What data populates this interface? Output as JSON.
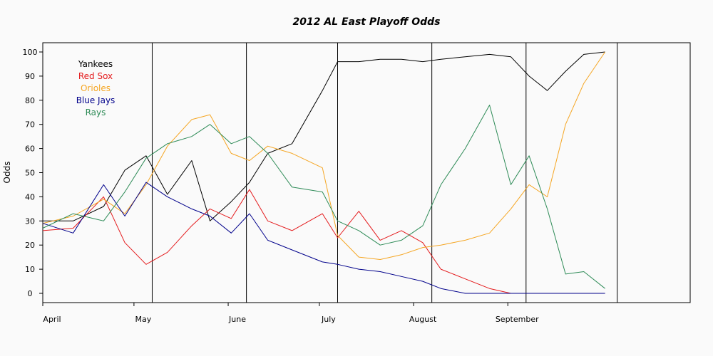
{
  "chart_data": {
    "type": "line",
    "title": "2012 AL East Playoff Odds",
    "xlabel": "",
    "ylabel": "Odds",
    "ylim": [
      0,
      100
    ],
    "yticks": [
      0,
      10,
      20,
      30,
      40,
      50,
      60,
      70,
      80,
      90,
      100
    ],
    "xlim": [
      "2012-04-01",
      "2012-10-31"
    ],
    "month_ticks": [
      {
        "label": "April",
        "date": "2012-04-01"
      },
      {
        "label": "May",
        "date": "2012-05-01"
      },
      {
        "label": "June",
        "date": "2012-06-01"
      },
      {
        "label": "July",
        "date": "2012-07-01"
      },
      {
        "label": "August",
        "date": "2012-08-01"
      },
      {
        "label": "September",
        "date": "2012-09-01"
      }
    ],
    "vertical_lines": [
      "2012-04-01",
      "2012-05-07",
      "2012-06-07",
      "2012-07-07",
      "2012-08-07",
      "2012-09-07",
      "2012-10-07"
    ],
    "legend_position": "top-left",
    "x": [
      "2012-04-01",
      "2012-04-11",
      "2012-04-21",
      "2012-04-28",
      "2012-05-05",
      "2012-05-12",
      "2012-05-20",
      "2012-05-26",
      "2012-06-02",
      "2012-06-08",
      "2012-06-14",
      "2012-06-22",
      "2012-07-02",
      "2012-07-07",
      "2012-07-14",
      "2012-07-21",
      "2012-07-28",
      "2012-08-04",
      "2012-08-10",
      "2012-08-18",
      "2012-08-26",
      "2012-09-02",
      "2012-09-08",
      "2012-09-14",
      "2012-09-20",
      "2012-09-26",
      "2012-10-03"
    ],
    "series": [
      {
        "name": "Yankees",
        "color": "#000000",
        "values": [
          30,
          30,
          36,
          51,
          57,
          41,
          55,
          30,
          38,
          46,
          58,
          62,
          84,
          96,
          96,
          97,
          97,
          96,
          97,
          98,
          99,
          98,
          90,
          84,
          92,
          99,
          100
        ]
      },
      {
        "name": "Red Sox",
        "color": "#e41a1c",
        "values": [
          26,
          27,
          40,
          21,
          12,
          17,
          28,
          35,
          31,
          43,
          30,
          26,
          33,
          23,
          34,
          22,
          26,
          21,
          10,
          6,
          2,
          0,
          0,
          0,
          0,
          0,
          0
        ]
      },
      {
        "name": "Orioles",
        "color": "#f5a623",
        "values": [
          29,
          32,
          39,
          33,
          45,
          61,
          72,
          74,
          58,
          55,
          61,
          58,
          52,
          24,
          15,
          14,
          16,
          19,
          20,
          22,
          25,
          35,
          45,
          40,
          70,
          87,
          100
        ]
      },
      {
        "name": "Blue Jays",
        "color": "#00008b",
        "values": [
          29,
          25,
          45,
          32,
          46,
          40,
          35,
          32,
          25,
          33,
          22,
          18,
          13,
          12,
          10,
          9,
          7,
          5,
          2,
          0,
          0,
          0,
          0,
          0,
          0,
          0,
          0
        ]
      },
      {
        "name": "Rays",
        "color": "#2e8b57",
        "values": [
          27,
          33,
          30,
          42,
          56,
          62,
          65,
          70,
          62,
          65,
          58,
          44,
          42,
          30,
          26,
          20,
          22,
          28,
          45,
          60,
          78,
          45,
          57,
          35,
          8,
          9,
          2
        ]
      }
    ]
  }
}
